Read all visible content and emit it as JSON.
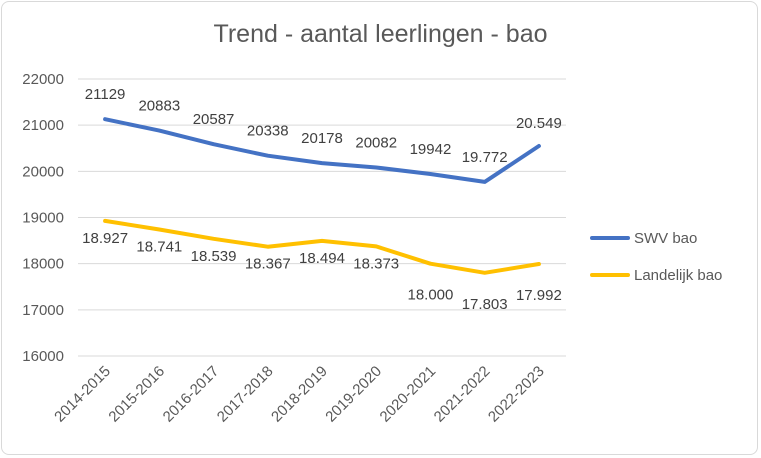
{
  "chart_data": {
    "type": "line",
    "title": "Trend - aantal leerlingen - bao",
    "xlabel": "",
    "ylabel": "",
    "categories": [
      "2014-2015",
      "2015-2016",
      "2016-2017",
      "2017-2018",
      "2018-2019",
      "2019-2020",
      "2020-2021",
      "2021-2022",
      "2022-2023"
    ],
    "ylim": [
      16000,
      22000
    ],
    "yticks": [
      16000,
      17000,
      18000,
      19000,
      20000,
      21000,
      22000
    ],
    "grid": "horizontal",
    "legend_position": "right",
    "series": [
      {
        "name": "SWV bao",
        "color": "#4472c4",
        "values": [
          21129,
          20883,
          20587,
          20338,
          20178,
          20082,
          19942,
          19772,
          20549
        ],
        "labels": [
          "21129",
          "20883",
          "20587",
          "20338",
          "20178",
          "20082",
          "19942",
          "19.772",
          "20.549"
        ]
      },
      {
        "name": "Landelijk bao",
        "color": "#ffc000",
        "values": [
          18927,
          18741,
          18539,
          18367,
          18494,
          18373,
          18000,
          17803,
          17992
        ],
        "labels": [
          "18.927",
          "18.741",
          "18.539",
          "18.367",
          "18.494",
          "18.373",
          "18.000",
          "17.803",
          "17.992"
        ]
      }
    ]
  }
}
